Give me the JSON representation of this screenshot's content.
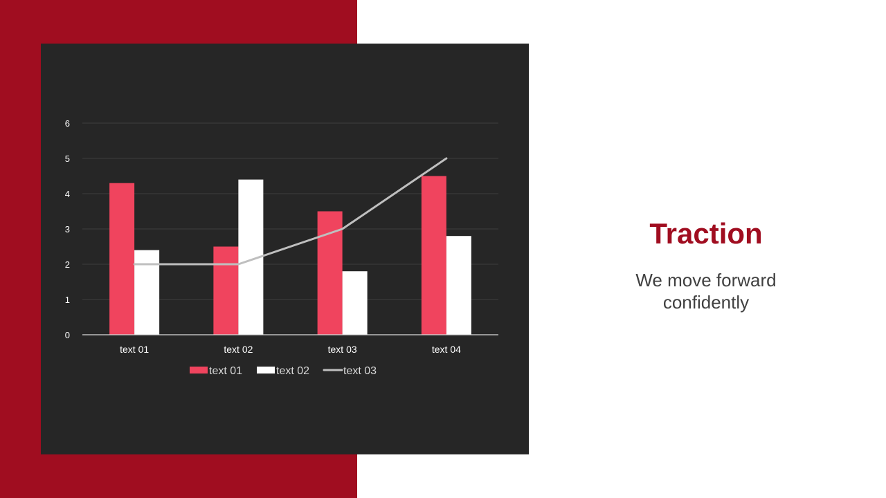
{
  "slide": {
    "title": "Traction",
    "subtitle_line1": "We move forward",
    "subtitle_line2": "confidently"
  },
  "colors": {
    "panel": "#a00d20",
    "card": "#262626",
    "series1": "#f0445e",
    "series2": "#ffffff",
    "series3": "#bfbfbf",
    "title": "#a00d20"
  },
  "chart_data": {
    "type": "bar",
    "categories": [
      "text 01",
      "text 02",
      "text 03",
      "text 04"
    ],
    "series": [
      {
        "name": "text 01",
        "type": "bar",
        "values": [
          4.3,
          2.5,
          3.5,
          4.5
        ]
      },
      {
        "name": "text 02",
        "type": "bar",
        "values": [
          2.4,
          4.4,
          1.8,
          2.8
        ]
      },
      {
        "name": "text 03",
        "type": "line",
        "values": [
          2,
          2,
          3,
          5
        ]
      }
    ],
    "ylim": [
      0,
      6
    ],
    "yticks": [
      0,
      1,
      2,
      3,
      4,
      5,
      6
    ],
    "grid": true,
    "legend": "bottom"
  }
}
